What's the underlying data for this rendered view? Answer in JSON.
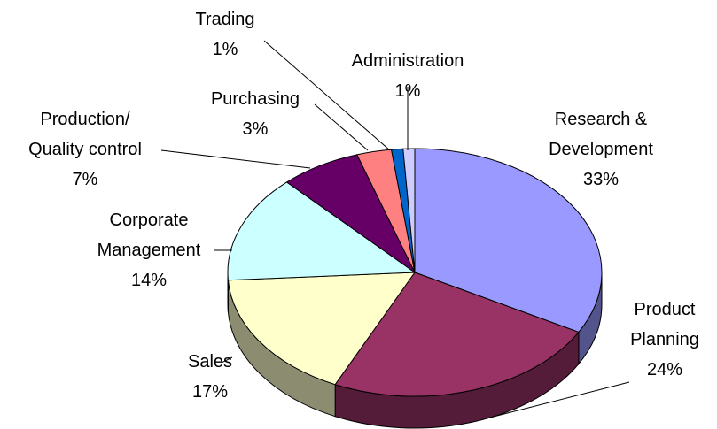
{
  "chart_data": {
    "type": "pie3d",
    "categories": [
      "Research &\nDevelopment",
      "Product\nPlanning",
      "Sales",
      "Corporate\nManagement",
      "Production/\nQuality control",
      "Purchasing",
      "Trading",
      "Administration"
    ],
    "values": [
      33,
      24,
      17,
      14,
      7,
      3,
      1,
      1
    ],
    "value_labels": [
      "33%",
      "24%",
      "17%",
      "14%",
      "7%",
      "3%",
      "1%",
      "1%"
    ],
    "colors": [
      "#9999ff",
      "#993366",
      "#ffffcc",
      "#ccffff",
      "#660066",
      "#ff8080",
      "#0066cc",
      "#ccccff"
    ]
  }
}
